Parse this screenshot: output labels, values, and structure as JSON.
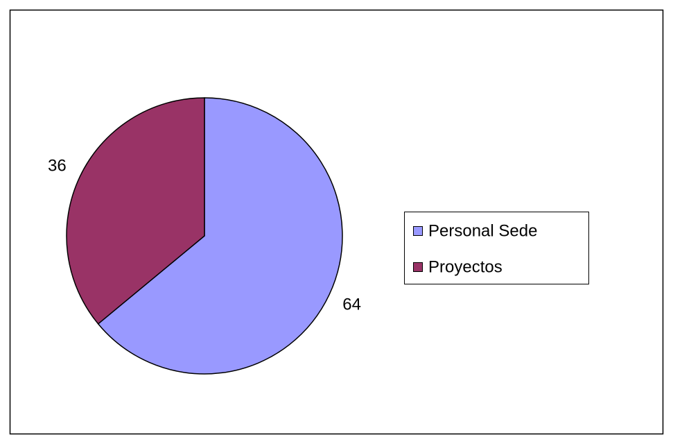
{
  "chart_data": {
    "type": "pie",
    "categories": [
      "Personal Sede",
      "Proyectos"
    ],
    "values": [
      64,
      36
    ],
    "colors": [
      "#9999ff",
      "#993366"
    ],
    "legend": "right"
  }
}
